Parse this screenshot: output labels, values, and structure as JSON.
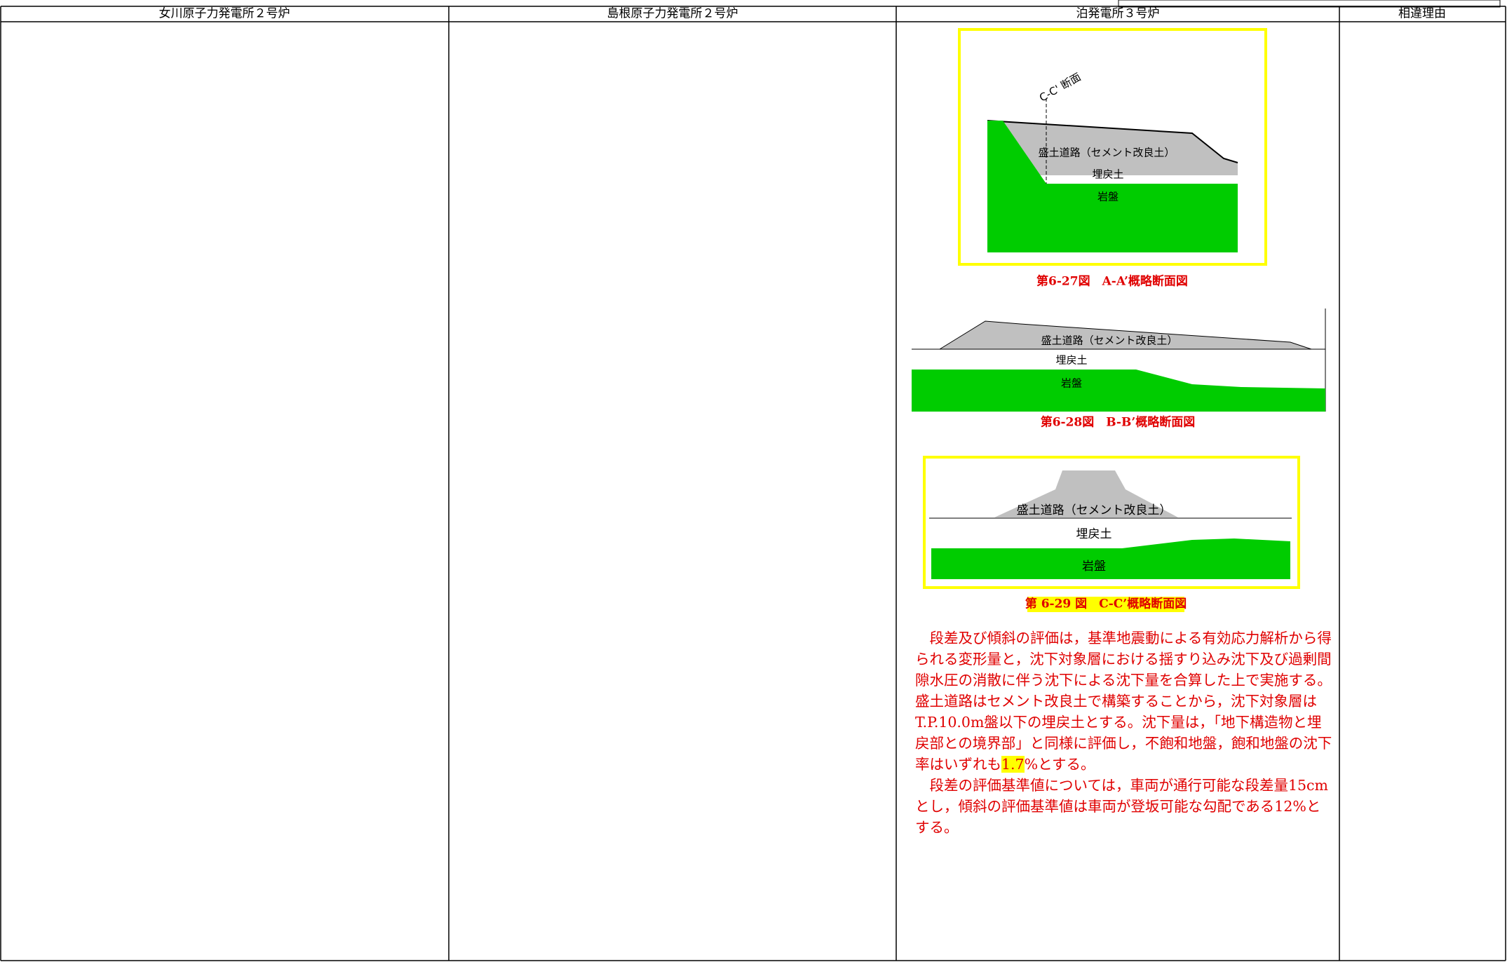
{
  "header": {
    "columns": [
      "女川原子力発電所２号炉",
      "島根原子力発電所２号炉",
      "泊発電所３号炉",
      "相違理由"
    ]
  },
  "figures": [
    {
      "labels": {
        "section": "C-C' 断面",
        "road": "盛土道路（セメント改良土）",
        "backfill": "埋戻土",
        "rock": "岩盤"
      },
      "caption": "第6-27図　A-A’概略断面図"
    },
    {
      "labels": {
        "road": "盛土道路（セメント改良土）",
        "backfill": "埋戻土",
        "rock": "岩盤"
      },
      "caption": "第6-28図　B-B’概略断面図"
    },
    {
      "labels": {
        "road": "盛土道路（セメント改良土）",
        "backfill": "埋戻土",
        "rock": "岩盤"
      },
      "caption": "第 6-29 図　C-C’概略断面図"
    }
  ],
  "paragraphs": [
    {
      "before": "　段差及び傾斜の評価は，基準地震動による有効応力解析から得られる変形量と，沈下対象層における揺すり込み沈下及び過剰間隙水圧の消散に伴う沈下による沈下量を合算した上で実施する。盛土道路はセメント改良土で構築することから，沈下対象層はT.P.10.0m盤以下の埋戻土とする。沈下量は，「地下構造物と埋戻部との境界部」と同様に評価し，不飽和地盤，飽和地盤の沈下率はいずれも",
      "highlight": "1.7",
      "after": "%とする。"
    },
    {
      "text": "　段差の評価基準値については，車両が通行可能な段差量15cmとし，傾斜の評価基準値は車両が登坂可能な勾配である12%とする。"
    }
  ]
}
